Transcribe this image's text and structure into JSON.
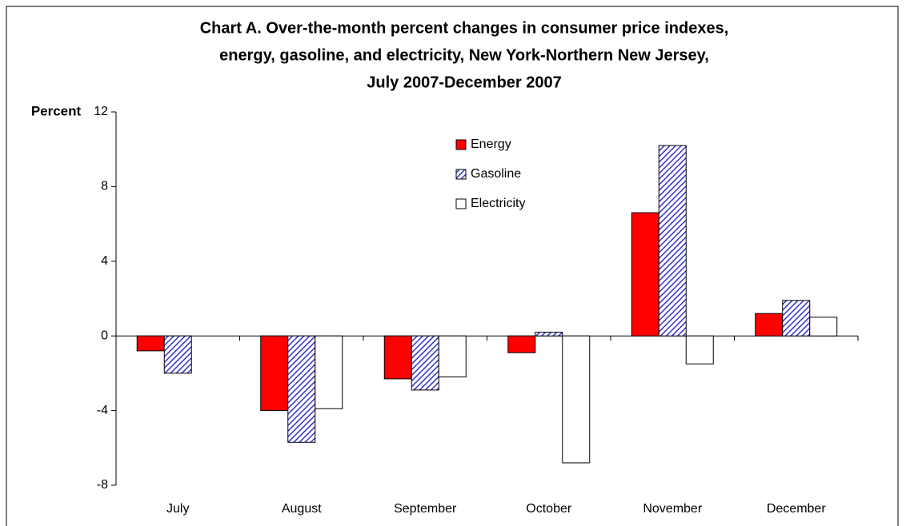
{
  "chart_data": {
    "type": "bar",
    "title": [
      "Chart A.  Over-the-month percent changes in consumer price indexes,",
      "energy, gasoline, and electricity, New York-Northern New Jersey,",
      "July 2007-December 2007"
    ],
    "y_label": "Percent",
    "categories": [
      "July",
      "August",
      "September",
      "October",
      "November",
      "December"
    ],
    "series": [
      {
        "name": "Energy",
        "color": "#ff0000",
        "values": [
          -0.8,
          -4.0,
          -2.3,
          -0.9,
          6.6,
          1.2
        ]
      },
      {
        "name": "Gasoline",
        "color": "#3333cc",
        "hatch": true,
        "values": [
          -2.0,
          -5.7,
          -2.9,
          0.2,
          10.2,
          1.9
        ]
      },
      {
        "name": "Electricity",
        "color": "#ffffff",
        "values": [
          null,
          -3.9,
          -2.2,
          -6.8,
          -1.5,
          1.0
        ]
      }
    ],
    "ylim": [
      -8,
      12
    ],
    "yticks": [
      -8,
      -4,
      0,
      4,
      8,
      12
    ]
  }
}
